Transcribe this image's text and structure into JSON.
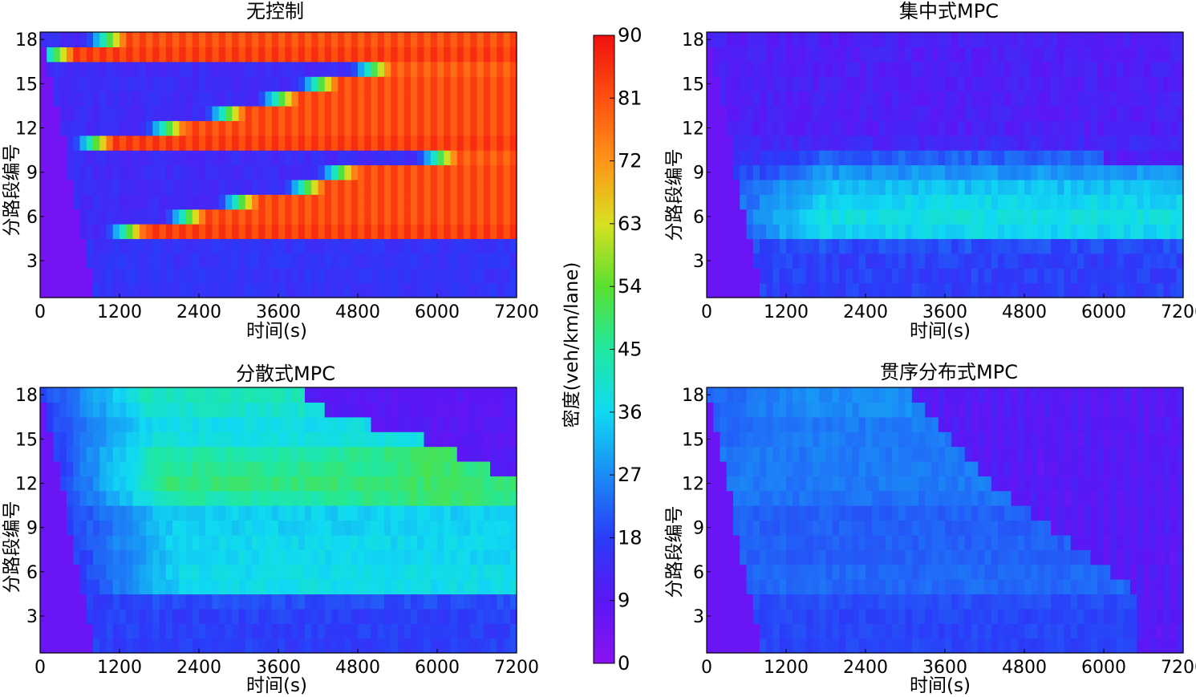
{
  "chart_data": [
    {
      "id": "no-control",
      "type": "heatmap",
      "title": "无控制",
      "xlabel": "时间(s)",
      "ylabel": "分路段编号",
      "xlim": [
        0,
        7200
      ],
      "ylim": [
        0.5,
        18.5
      ],
      "xticks": [
        "0",
        "1200",
        "2400",
        "3600",
        "4800",
        "6000",
        "7200"
      ],
      "yticks": [
        "3",
        "6",
        "9",
        "12",
        "15",
        "18"
      ],
      "scenario": "nocontrol",
      "cells": [
        {
          "segment": 18,
          "jam_start_s": 1000,
          "jam_density": 80
        },
        {
          "segment": 17,
          "jam_start_s": 220,
          "jam_density": 82
        },
        {
          "segment": 16,
          "jam_start_s": 5000,
          "jam_density": 78
        },
        {
          "segment": 15,
          "jam_start_s": 4200,
          "jam_density": 80
        },
        {
          "segment": 14,
          "jam_start_s": 3600,
          "jam_density": 80
        },
        {
          "segment": 13,
          "jam_start_s": 2800,
          "jam_density": 80
        },
        {
          "segment": 12,
          "jam_start_s": 1900,
          "jam_density": 80
        },
        {
          "segment": 11,
          "jam_start_s": 800,
          "jam_density": 82
        },
        {
          "segment": 10,
          "jam_start_s": 6000,
          "jam_density": 78
        },
        {
          "segment": 9,
          "jam_start_s": 4500,
          "jam_density": 80
        },
        {
          "segment": 8,
          "jam_start_s": 4000,
          "jam_density": 80
        },
        {
          "segment": 7,
          "jam_start_s": 3000,
          "jam_density": 80
        },
        {
          "segment": 6,
          "jam_start_s": 2200,
          "jam_density": 80
        },
        {
          "segment": 5,
          "jam_start_s": 1300,
          "jam_density": 82
        },
        {
          "segment": 4,
          "jam_start_s": null,
          "jam_density": 16
        },
        {
          "segment": 3,
          "jam_start_s": null,
          "jam_density": 16
        },
        {
          "segment": 2,
          "jam_start_s": null,
          "jam_density": 16
        },
        {
          "segment": 1,
          "jam_start_s": null,
          "jam_density": 16
        }
      ]
    },
    {
      "id": "centralized-mpc",
      "type": "heatmap",
      "title": "集中式MPC",
      "xlabel": "时间(s)",
      "ylabel": "分路段编号",
      "xlim": [
        0,
        7200
      ],
      "ylim": [
        0.5,
        18.5
      ],
      "xticks": [
        "0",
        "1200",
        "2400",
        "3600",
        "4800",
        "6000",
        "7200"
      ],
      "yticks": [
        "3",
        "6",
        "9",
        "12",
        "15",
        "18"
      ],
      "scenario": "centralized",
      "cells": [
        {
          "segment": 18,
          "density": 11
        },
        {
          "segment": 17,
          "density": 11
        },
        {
          "segment": 16,
          "density": 11
        },
        {
          "segment": 15,
          "density": 11
        },
        {
          "segment": 14,
          "density": 11
        },
        {
          "segment": 13,
          "density": 11
        },
        {
          "segment": 12,
          "density": 11
        },
        {
          "segment": 11,
          "density": 13
        },
        {
          "segment": 10,
          "density": 22,
          "plateau_end_s": 6000
        },
        {
          "segment": 9,
          "density": 28,
          "plateau_end_s": 7200
        },
        {
          "segment": 8,
          "density": 33
        },
        {
          "segment": 7,
          "density": 36
        },
        {
          "segment": 6,
          "density": 38
        },
        {
          "segment": 5,
          "density": 36
        },
        {
          "segment": 4,
          "density": 20
        },
        {
          "segment": 3,
          "density": 18
        },
        {
          "segment": 2,
          "density": 18
        },
        {
          "segment": 1,
          "density": 18
        }
      ]
    },
    {
      "id": "decentralized-mpc",
      "type": "heatmap",
      "title": "分散式MPC",
      "xlabel": "时间(s)",
      "ylabel": "分路段编号",
      "xlim": [
        0,
        7200
      ],
      "ylim": [
        0.5,
        18.5
      ],
      "xticks": [
        "0",
        "1200",
        "2400",
        "3600",
        "4800",
        "6000",
        "7200"
      ],
      "yticks": [
        "3",
        "6",
        "9",
        "12",
        "15",
        "18"
      ],
      "scenario": "decentralized",
      "cells": [
        {
          "segment": 18,
          "density": 42,
          "congestion_end_s": 4000
        },
        {
          "segment": 17,
          "density": 40,
          "congestion_end_s": 4300
        },
        {
          "segment": 16,
          "density": 37,
          "congestion_end_s": 5000
        },
        {
          "segment": 15,
          "density": 38,
          "congestion_end_s": 5800
        },
        {
          "segment": 14,
          "density": 44,
          "congestion_end_s": 6300
        },
        {
          "segment": 13,
          "density": 46,
          "congestion_end_s": 6800
        },
        {
          "segment": 12,
          "density": 48,
          "congestion_end_s": 7200
        },
        {
          "segment": 11,
          "density": 44,
          "congestion_end_s": 7200
        },
        {
          "segment": 10,
          "density": 35,
          "congestion_end_s": 7200
        },
        {
          "segment": 9,
          "density": 35,
          "congestion_end_s": 7200
        },
        {
          "segment": 8,
          "density": 36,
          "congestion_end_s": 7200
        },
        {
          "segment": 7,
          "density": 36,
          "congestion_end_s": 7200
        },
        {
          "segment": 6,
          "density": 37,
          "congestion_end_s": 7200
        },
        {
          "segment": 5,
          "density": 37,
          "congestion_end_s": 7200
        },
        {
          "segment": 4,
          "density": 20
        },
        {
          "segment": 3,
          "density": 18
        },
        {
          "segment": 2,
          "density": 18
        },
        {
          "segment": 1,
          "density": 18
        }
      ]
    },
    {
      "id": "sequential-distributed-mpc",
      "type": "heatmap",
      "title": "贯序分布式MPC",
      "xlabel": "时间(s)",
      "ylabel": "分路段编号",
      "xlim": [
        0,
        7200
      ],
      "ylim": [
        0.5,
        18.5
      ],
      "xticks": [
        "0",
        "1200",
        "2400",
        "3600",
        "4800",
        "6000",
        "7200"
      ],
      "yticks": [
        "3",
        "6",
        "9",
        "12",
        "15",
        "18"
      ],
      "scenario": "sequential",
      "cells": [
        {
          "segment": 18,
          "density": 27,
          "congestion_end_s": 3100
        },
        {
          "segment": 17,
          "density": 27,
          "congestion_end_s": 3300
        },
        {
          "segment": 16,
          "density": 25,
          "congestion_end_s": 3500
        },
        {
          "segment": 15,
          "density": 25,
          "congestion_end_s": 3700
        },
        {
          "segment": 14,
          "density": 25,
          "congestion_end_s": 3900
        },
        {
          "segment": 13,
          "density": 25,
          "congestion_end_s": 4100
        },
        {
          "segment": 12,
          "density": 25,
          "congestion_end_s": 4300
        },
        {
          "segment": 11,
          "density": 24,
          "congestion_end_s": 4550
        },
        {
          "segment": 10,
          "density": 22,
          "congestion_end_s": 4900
        },
        {
          "segment": 9,
          "density": 22,
          "congestion_end_s": 5200
        },
        {
          "segment": 8,
          "density": 22,
          "congestion_end_s": 5500
        },
        {
          "segment": 7,
          "density": 22,
          "congestion_end_s": 5800
        },
        {
          "segment": 6,
          "density": 23,
          "congestion_end_s": 6100
        },
        {
          "segment": 5,
          "density": 23,
          "congestion_end_s": 6350
        },
        {
          "segment": 4,
          "density": 20,
          "congestion_end_s": 6500
        },
        {
          "segment": 3,
          "density": 19,
          "congestion_end_s": 6500
        },
        {
          "segment": 2,
          "density": 19,
          "congestion_end_s": 6500
        },
        {
          "segment": 1,
          "density": 19,
          "congestion_end_s": 6500
        }
      ]
    }
  ],
  "colorbar": {
    "label": "密度(veh/km/lane)",
    "min": 0,
    "max": 90,
    "ticks": [
      "0",
      "9",
      "18",
      "27",
      "36",
      "45",
      "54",
      "63",
      "72",
      "81",
      "90"
    ],
    "colormap": "jet-like (purple→blue→cyan→green→yellow→orange→red)"
  }
}
